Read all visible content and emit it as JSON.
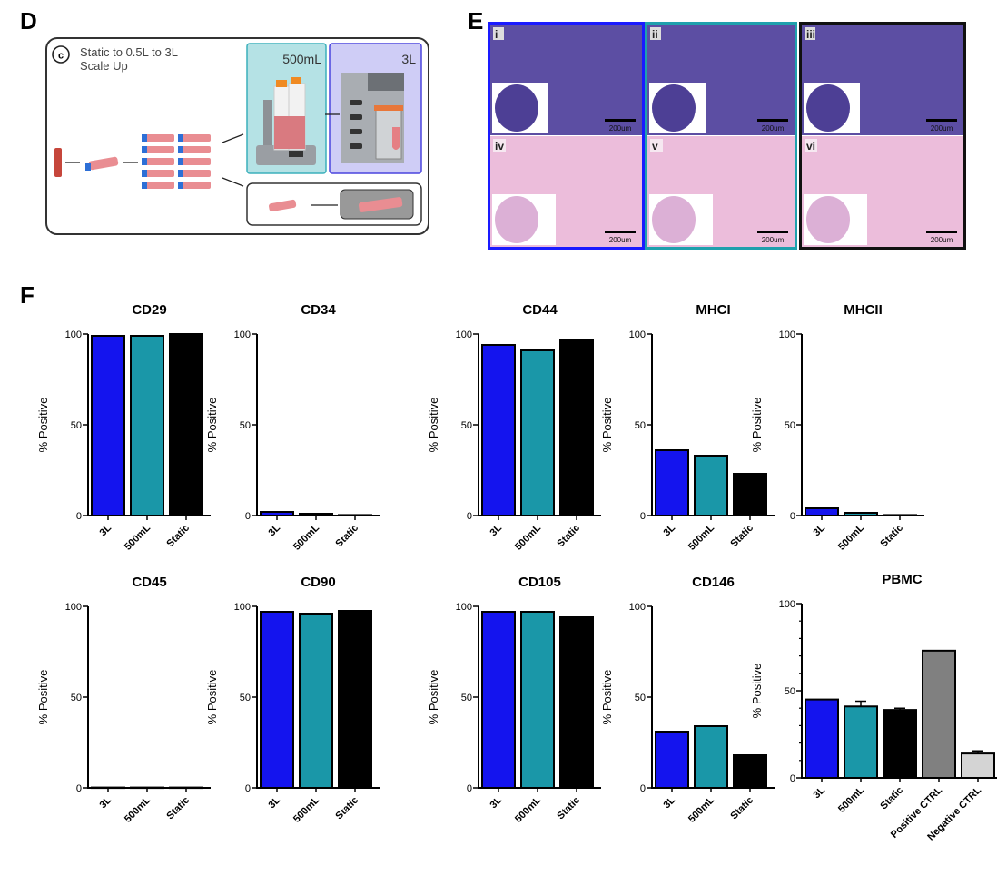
{
  "panels": {
    "d": {
      "letter": "D",
      "badge": "c",
      "title_line1": "Static to 0.5L to 3L",
      "title_line2": "Scale Up",
      "box_500": "500mL",
      "box_3l": "3L"
    },
    "e": {
      "letter": "E",
      "tiles": [
        "i",
        "ii",
        "iii",
        "iv",
        "v",
        "vi"
      ],
      "scale_label": "200um",
      "frame_colors": [
        "#1a1aff",
        "#1fa0ad",
        "#111111"
      ]
    },
    "f": {
      "letter": "F"
    }
  },
  "colors": {
    "3L": "#1414ee",
    "500mL": "#1a97a8",
    "Static": "#000000",
    "Positive CTRL": "#808080",
    "Negative CTRL": "#d4d4d4"
  },
  "chart_data": [
    {
      "type": "bar",
      "title": "CD29",
      "ylabel": "% Positive",
      "ylim": [
        0,
        100
      ],
      "yticks": [
        0,
        50,
        100
      ],
      "categories": [
        "3L",
        "500mL",
        "Static"
      ],
      "values": [
        99,
        99,
        100
      ]
    },
    {
      "type": "bar",
      "title": "CD34",
      "ylabel": "% Positive",
      "ylim": [
        0,
        100
      ],
      "yticks": [
        0,
        50,
        100
      ],
      "categories": [
        "3L",
        "500mL",
        "Static"
      ],
      "values": [
        2,
        1,
        0.3
      ]
    },
    {
      "type": "bar",
      "title": "CD44",
      "ylabel": "% Positive",
      "ylim": [
        0,
        100
      ],
      "yticks": [
        0,
        50,
        100
      ],
      "categories": [
        "3L",
        "500mL",
        "Static"
      ],
      "values": [
        94,
        91,
        97
      ]
    },
    {
      "type": "bar",
      "title": "MHCI",
      "ylabel": "% Positive",
      "ylim": [
        0,
        100
      ],
      "yticks": [
        0,
        50,
        100
      ],
      "categories": [
        "3L",
        "500mL",
        "Static"
      ],
      "values": [
        36,
        33,
        23
      ]
    },
    {
      "type": "bar",
      "title": "MHCII",
      "ylabel": "% Positive",
      "ylim": [
        0,
        100
      ],
      "yticks": [
        0,
        50,
        100
      ],
      "categories": [
        "3L",
        "500mL",
        "Static"
      ],
      "values": [
        4,
        1.5,
        0.3
      ]
    },
    {
      "type": "bar",
      "title": "CD45",
      "ylabel": "% Positive",
      "ylim": [
        0,
        100
      ],
      "yticks": [
        0,
        50,
        100
      ],
      "categories": [
        "3L",
        "500mL",
        "Static"
      ],
      "values": [
        0.2,
        0.2,
        0.2
      ]
    },
    {
      "type": "bar",
      "title": "CD90",
      "ylabel": "% Positive",
      "ylim": [
        0,
        100
      ],
      "yticks": [
        0,
        50,
        100
      ],
      "categories": [
        "3L",
        "500mL",
        "Static"
      ],
      "values": [
        97,
        96,
        97.5
      ]
    },
    {
      "type": "bar",
      "title": "CD105",
      "ylabel": "% Positive",
      "ylim": [
        0,
        100
      ],
      "yticks": [
        0,
        50,
        100
      ],
      "categories": [
        "3L",
        "500mL",
        "Static"
      ],
      "values": [
        97,
        97,
        94
      ]
    },
    {
      "type": "bar",
      "title": "CD146",
      "ylabel": "% Positive",
      "ylim": [
        0,
        100
      ],
      "yticks": [
        0,
        50,
        100
      ],
      "categories": [
        "3L",
        "500mL",
        "Static"
      ],
      "values": [
        31,
        34,
        18
      ]
    },
    {
      "type": "bar",
      "title": "PBMC",
      "ylabel": "% Positive",
      "ylim": [
        0,
        100
      ],
      "yticks": [
        0,
        50,
        100
      ],
      "categories": [
        "3L",
        "500mL",
        "Static",
        "Positive CTRL",
        "Negative CTRL"
      ],
      "values": [
        45,
        41,
        39,
        73,
        14
      ],
      "errors": [
        0,
        3,
        1,
        0,
        1.5
      ]
    }
  ]
}
